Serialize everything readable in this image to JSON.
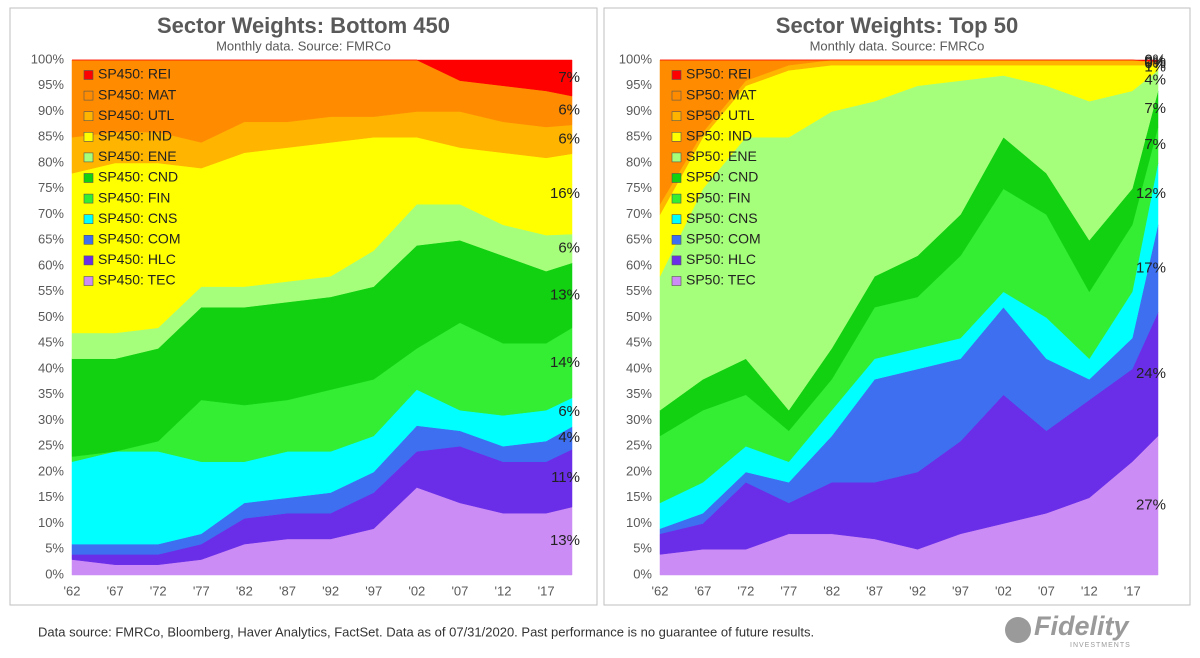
{
  "chart_data": [
    {
      "type": "stacked_area",
      "title": "Sector Weights: Bottom 450",
      "subtitle": "Monthly data.  Source: FMRCo",
      "x": [
        1962,
        1967,
        1972,
        1977,
        1982,
        1987,
        1992,
        1997,
        2002,
        2007,
        2012,
        2017,
        2020
      ],
      "xlim": [
        1962,
        2020
      ],
      "xticks": [
        {
          "value": 1962,
          "label": "'62"
        },
        {
          "value": 1967,
          "label": "'67"
        },
        {
          "value": 1972,
          "label": "'72"
        },
        {
          "value": 1977,
          "label": "'77"
        },
        {
          "value": 1982,
          "label": "'82"
        },
        {
          "value": 1987,
          "label": "'87"
        },
        {
          "value": 1992,
          "label": "'92"
        },
        {
          "value": 1997,
          "label": "'97"
        },
        {
          "value": 2002,
          "label": "'02"
        },
        {
          "value": 2007,
          "label": "'07"
        },
        {
          "value": 2012,
          "label": "'12"
        },
        {
          "value": 2017,
          "label": "'17"
        }
      ],
      "ylim": [
        0,
        100
      ],
      "yticks": [
        {
          "value": 0,
          "label": "0%"
        },
        {
          "value": 5,
          "label": "5%"
        },
        {
          "value": 10,
          "label": "10%"
        },
        {
          "value": 15,
          "label": "15%"
        },
        {
          "value": 20,
          "label": "20%"
        },
        {
          "value": 25,
          "label": "25%"
        },
        {
          "value": 30,
          "label": "30%"
        },
        {
          "value": 35,
          "label": "35%"
        },
        {
          "value": 40,
          "label": "40%"
        },
        {
          "value": 45,
          "label": "45%"
        },
        {
          "value": 50,
          "label": "50%"
        },
        {
          "value": 55,
          "label": "55%"
        },
        {
          "value": 60,
          "label": "60%"
        },
        {
          "value": 65,
          "label": "65%"
        },
        {
          "value": 70,
          "label": "70%"
        },
        {
          "value": 75,
          "label": "75%"
        },
        {
          "value": 80,
          "label": "80%"
        },
        {
          "value": 85,
          "label": "85%"
        },
        {
          "value": 90,
          "label": "90%"
        },
        {
          "value": 95,
          "label": "95%"
        },
        {
          "value": 100,
          "label": "100%"
        }
      ],
      "grid": false,
      "legend": "upper left",
      "series": [
        {
          "name": "SP450: REI",
          "color": "#ff0000",
          "values": [
            0,
            0,
            0,
            0,
            0,
            0,
            0,
            0,
            0,
            4,
            5,
            6,
            7.0
          ],
          "end_label": "7%"
        },
        {
          "name": "SP450: MAT",
          "color": "#ff8c00",
          "values": [
            15,
            14,
            14,
            16,
            12,
            12,
            11,
            11,
            10,
            6,
            7,
            7,
            5.6
          ],
          "end_label": "6%"
        },
        {
          "name": "SP450: UTL",
          "color": "#ffb400",
          "values": [
            7,
            6,
            6,
            5,
            6,
            5,
            5,
            4,
            5,
            7,
            6,
            6,
            5.6
          ],
          "end_label": "6%"
        },
        {
          "name": "SP450: IND",
          "color": "#ffff00",
          "values": [
            31,
            33,
            32,
            23,
            26,
            26,
            26,
            22,
            13,
            11,
            14,
            15,
            15.6
          ],
          "end_label": "16%"
        },
        {
          "name": "SP450: ENE",
          "color": "#a6ff7a",
          "values": [
            5,
            5,
            4,
            4,
            4,
            4,
            4,
            7,
            8,
            7,
            6,
            7,
            5.6
          ],
          "end_label": "6%"
        },
        {
          "name": "SP450: CND",
          "color": "#11d111",
          "values": [
            19,
            18,
            18,
            18,
            19,
            19,
            18,
            18,
            20,
            16,
            17,
            14,
            12.6
          ],
          "end_label": "13%"
        },
        {
          "name": "SP450: FIN",
          "color": "#33ee33",
          "values": [
            1,
            0,
            2,
            12,
            11,
            10,
            12,
            11,
            8,
            17,
            14,
            13,
            13.6
          ],
          "end_label": "14%"
        },
        {
          "name": "SP450: CNS",
          "color": "#00ffff",
          "values": [
            16,
            18,
            18,
            14,
            8,
            9,
            8,
            7,
            7,
            4,
            6,
            6,
            5.6
          ],
          "end_label": "6%"
        },
        {
          "name": "SP450: COM",
          "color": "#3d6ff0",
          "values": [
            2,
            2,
            2,
            2,
            3,
            3,
            4,
            4,
            5,
            3,
            3,
            4,
            4.4
          ],
          "end_label": "4%"
        },
        {
          "name": "SP450: HLC",
          "color": "#6a2ee8",
          "values": [
            1,
            2,
            2,
            3,
            5,
            5,
            5,
            7,
            7,
            11,
            10,
            10,
            11.2
          ],
          "end_label": "11%"
        },
        {
          "name": "SP450: TEC",
          "color": "#cc8cf5",
          "values": [
            3,
            2,
            2,
            3,
            6,
            7,
            7,
            9,
            17,
            14,
            12,
            12,
            13.2
          ],
          "end_label": "13%"
        }
      ]
    },
    {
      "type": "stacked_area",
      "title": "Sector Weights: Top 50",
      "subtitle": "Monthly data.  Source: FMRCo",
      "x": [
        1962,
        1967,
        1972,
        1977,
        1982,
        1987,
        1992,
        1997,
        2002,
        2007,
        2012,
        2017,
        2020
      ],
      "xlim": [
        1962,
        2020
      ],
      "xticks": [
        {
          "value": 1962,
          "label": "'62"
        },
        {
          "value": 1967,
          "label": "'67"
        },
        {
          "value": 1972,
          "label": "'72"
        },
        {
          "value": 1977,
          "label": "'77"
        },
        {
          "value": 1982,
          "label": "'82"
        },
        {
          "value": 1987,
          "label": "'87"
        },
        {
          "value": 1992,
          "label": "'92"
        },
        {
          "value": 1997,
          "label": "'97"
        },
        {
          "value": 2002,
          "label": "'02"
        },
        {
          "value": 2007,
          "label": "'07"
        },
        {
          "value": 2012,
          "label": "'12"
        },
        {
          "value": 2017,
          "label": "'17"
        }
      ],
      "ylim": [
        0,
        100
      ],
      "yticks": [
        {
          "value": 0,
          "label": "0%"
        },
        {
          "value": 5,
          "label": "5%"
        },
        {
          "value": 10,
          "label": "10%"
        },
        {
          "value": 15,
          "label": "15%"
        },
        {
          "value": 20,
          "label": "20%"
        },
        {
          "value": 25,
          "label": "25%"
        },
        {
          "value": 30,
          "label": "30%"
        },
        {
          "value": 35,
          "label": "35%"
        },
        {
          "value": 40,
          "label": "40%"
        },
        {
          "value": 45,
          "label": "45%"
        },
        {
          "value": 50,
          "label": "50%"
        },
        {
          "value": 55,
          "label": "55%"
        },
        {
          "value": 60,
          "label": "60%"
        },
        {
          "value": 65,
          "label": "65%"
        },
        {
          "value": 70,
          "label": "70%"
        },
        {
          "value": 75,
          "label": "75%"
        },
        {
          "value": 80,
          "label": "80%"
        },
        {
          "value": 85,
          "label": "85%"
        },
        {
          "value": 90,
          "label": "90%"
        },
        {
          "value": 95,
          "label": "95%"
        },
        {
          "value": 100,
          "label": "100%"
        }
      ],
      "grid": false,
      "legend": "upper left",
      "series": [
        {
          "name": "SP50: REI",
          "color": "#ff0000",
          "values": [
            0,
            0,
            0,
            0,
            0,
            0,
            0,
            0,
            0,
            0,
            0,
            0,
            0.3
          ],
          "end_label": "0%"
        },
        {
          "name": "SP50: MAT",
          "color": "#ff8c00",
          "values": [
            28,
            14,
            4,
            1,
            0,
            0,
            0,
            0,
            0,
            0,
            0,
            0,
            0.3
          ],
          "end_label": "0%"
        },
        {
          "name": "SP50: UTL",
          "color": "#ffb400",
          "values": [
            2,
            1,
            1,
            1,
            1,
            1,
            1,
            1,
            1,
            1,
            1,
            1,
            0.4
          ],
          "end_label": "0%"
        },
        {
          "name": "SP50: IND",
          "color": "#ffff00",
          "values": [
            12,
            10,
            10,
            13,
            9,
            7,
            4,
            3,
            2,
            4,
            7,
            5,
            1
          ],
          "end_label": "1%"
        },
        {
          "name": "SP50: ENE",
          "color": "#a6ff7a",
          "values": [
            26,
            37,
            43,
            53,
            46,
            34,
            33,
            26,
            12,
            17,
            27,
            19,
            4
          ],
          "end_label": "4%"
        },
        {
          "name": "SP50: CND",
          "color": "#11d111",
          "values": [
            5,
            6,
            7,
            4,
            6,
            6,
            8,
            8,
            10,
            8,
            10,
            7,
            7
          ],
          "end_label": "7%"
        },
        {
          "name": "SP50: FIN",
          "color": "#33ee33",
          "values": [
            13,
            14,
            10,
            6,
            6,
            10,
            10,
            16,
            20,
            20,
            13,
            13,
            7
          ],
          "end_label": "7%"
        },
        {
          "name": "SP50: CNS",
          "color": "#00ffff",
          "values": [
            5,
            6,
            5,
            4,
            5,
            4,
            4,
            4,
            3,
            8,
            4,
            9,
            12
          ],
          "end_label": "12%"
        },
        {
          "name": "SP50: COM",
          "color": "#3d6ff0",
          "values": [
            1,
            2,
            2,
            4,
            9,
            20,
            20,
            16,
            17,
            14,
            4,
            6,
            17
          ],
          "end_label": "17%"
        },
        {
          "name": "SP50: HLC",
          "color": "#6a2ee8",
          "values": [
            4,
            5,
            13,
            6,
            10,
            11,
            15,
            18,
            25,
            16,
            19,
            18,
            24
          ],
          "end_label": "24%"
        },
        {
          "name": "SP50: TEC",
          "color": "#cc8cf5",
          "values": [
            4,
            5,
            5,
            8,
            8,
            7,
            5,
            8,
            10,
            12,
            15,
            22,
            27
          ],
          "end_label": "27%"
        }
      ]
    }
  ],
  "footer": {
    "note": "Data source: FMRCo, Bloomberg, Haver Analytics, FactSet. Data as of 07/31/2020. Past performance is no guarantee of future results.",
    "logo": "Fidelity",
    "logo_sub": "INVESTMENTS"
  }
}
